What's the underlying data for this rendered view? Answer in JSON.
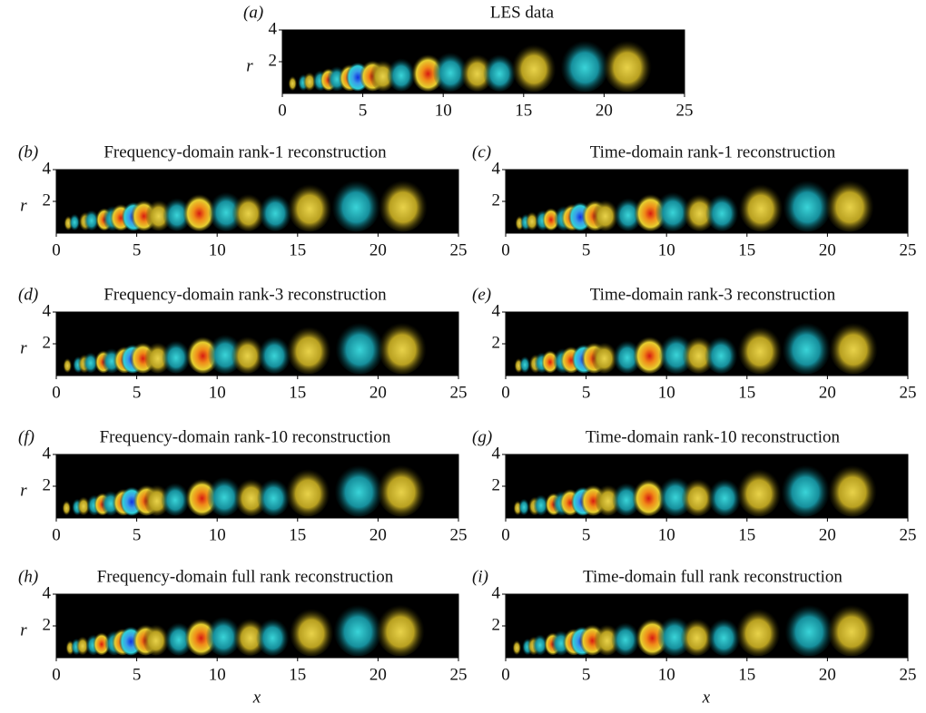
{
  "panels": [
    {
      "label": "(a)",
      "title": "LES data",
      "ylabel": "r",
      "xlim": [
        0,
        25
      ],
      "ylim": [
        0,
        4
      ],
      "xticks": [
        0,
        5,
        10,
        15,
        20,
        25
      ],
      "yticks": [
        2,
        4
      ]
    },
    {
      "label": "(b)",
      "title": "Frequency-domain rank-1 reconstruction",
      "ylabel": "r",
      "xlim": [
        0,
        25
      ],
      "ylim": [
        0,
        4
      ],
      "xticks": [
        0,
        5,
        10,
        15,
        20,
        25
      ],
      "yticks": [
        2,
        4
      ]
    },
    {
      "label": "(c)",
      "title": "Time-domain rank-1 reconstruction",
      "xlim": [
        0,
        25
      ],
      "ylim": [
        0,
        4
      ],
      "xticks": [
        0,
        5,
        10,
        15,
        20,
        25
      ],
      "yticks": [
        2,
        4
      ]
    },
    {
      "label": "(d)",
      "title": "Frequency-domain rank-3 reconstruction",
      "ylabel": "r",
      "xlim": [
        0,
        25
      ],
      "ylim": [
        0,
        4
      ],
      "xticks": [
        0,
        5,
        10,
        15,
        20,
        25
      ],
      "yticks": [
        2,
        4
      ]
    },
    {
      "label": "(e)",
      "title": "Time-domain rank-3 reconstruction",
      "xlim": [
        0,
        25
      ],
      "ylim": [
        0,
        4
      ],
      "xticks": [
        0,
        5,
        10,
        15,
        20,
        25
      ],
      "yticks": [
        2,
        4
      ]
    },
    {
      "label": "(f)",
      "title": "Frequency-domain rank-10 reconstruction",
      "ylabel": "r",
      "xlim": [
        0,
        25
      ],
      "ylim": [
        0,
        4
      ],
      "xticks": [
        0,
        5,
        10,
        15,
        20,
        25
      ],
      "yticks": [
        2,
        4
      ]
    },
    {
      "label": "(g)",
      "title": "Time-domain rank-10 reconstruction",
      "xlim": [
        0,
        25
      ],
      "ylim": [
        0,
        4
      ],
      "xticks": [
        0,
        5,
        10,
        15,
        20,
        25
      ],
      "yticks": [
        2,
        4
      ]
    },
    {
      "label": "(h)",
      "title": "Frequency-domain full rank reconstruction",
      "ylabel": "r",
      "xlim": [
        0,
        25
      ],
      "ylim": [
        0,
        4
      ],
      "xticks": [
        0,
        5,
        10,
        15,
        20,
        25
      ],
      "yticks": [
        2,
        4
      ]
    },
    {
      "label": "(i)",
      "title": "Time-domain full rank reconstruction",
      "xlim": [
        0,
        25
      ],
      "ylim": [
        0,
        4
      ],
      "xticks": [
        0,
        5,
        10,
        15,
        20,
        25
      ],
      "yticks": [
        2,
        4
      ]
    }
  ],
  "xlabels": [
    "x",
    "x"
  ]
}
